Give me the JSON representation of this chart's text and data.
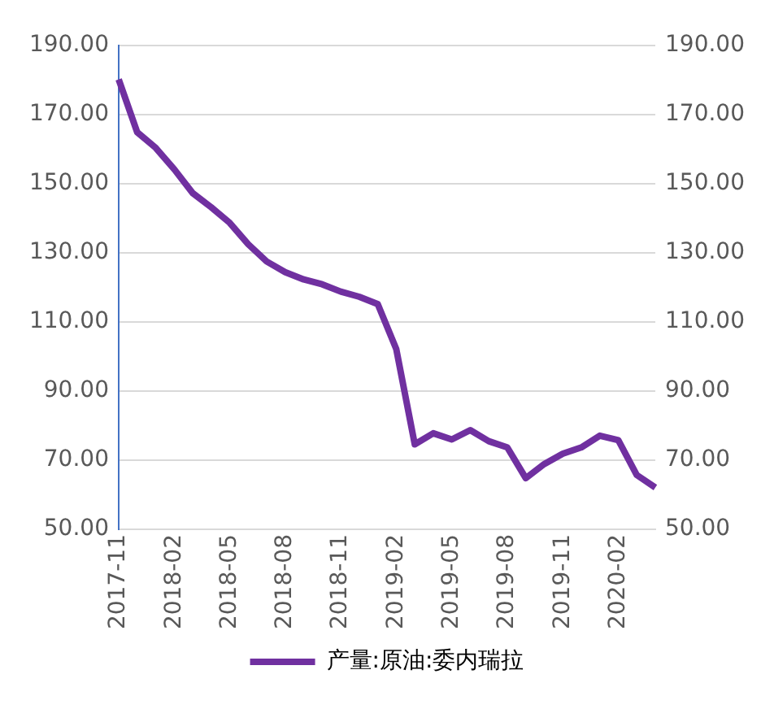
{
  "chart_data": {
    "type": "line",
    "categories": [
      "2017-11",
      null,
      null,
      "2018-02",
      null,
      null,
      "2018-05",
      null,
      null,
      "2018-08",
      null,
      null,
      "2018-11",
      null,
      null,
      "2019-02",
      null,
      null,
      "2019-05",
      null,
      null,
      "2019-08",
      null,
      null,
      "2019-11",
      null,
      null,
      "2020-02",
      null,
      null
    ],
    "series": [
      {
        "name": "产量:原油:委内瑞拉",
        "color": "#7030a0",
        "values": [
          180.2,
          164.9,
          160.4,
          154.2,
          147.3,
          143.2,
          138.7,
          132.5,
          127.5,
          124.4,
          122.3,
          120.9,
          118.8,
          117.3,
          115.2,
          102.2,
          74.6,
          77.8,
          76.0,
          78.7,
          75.5,
          73.7,
          64.8,
          68.9,
          71.9,
          73.7,
          77.1,
          75.8,
          65.7,
          62.1
        ]
      }
    ],
    "ylim": [
      50,
      190
    ],
    "yticks": [
      {
        "value": 50,
        "label": "50.00"
      },
      {
        "value": 70,
        "label": "70.00"
      },
      {
        "value": 90,
        "label": "90.00"
      },
      {
        "value": 110,
        "label": "110.00"
      },
      {
        "value": 130,
        "label": "130.00"
      },
      {
        "value": 150,
        "label": "150.00"
      },
      {
        "value": 170,
        "label": "170.00"
      },
      {
        "value": 190,
        "label": "190.00"
      }
    ],
    "y2lim": [
      50,
      190
    ],
    "y2ticks": [
      {
        "value": 50,
        "label": "50.00"
      },
      {
        "value": 70,
        "label": "70.00"
      },
      {
        "value": 90,
        "label": "90.00"
      },
      {
        "value": 110,
        "label": "110.00"
      },
      {
        "value": 130,
        "label": "130.00"
      },
      {
        "value": 150,
        "label": "150.00"
      },
      {
        "value": 170,
        "label": "170.00"
      },
      {
        "value": 190,
        "label": "190.00"
      }
    ],
    "grid": "y",
    "legend": "bottom",
    "marker": "none",
    "line_style": "solid"
  }
}
